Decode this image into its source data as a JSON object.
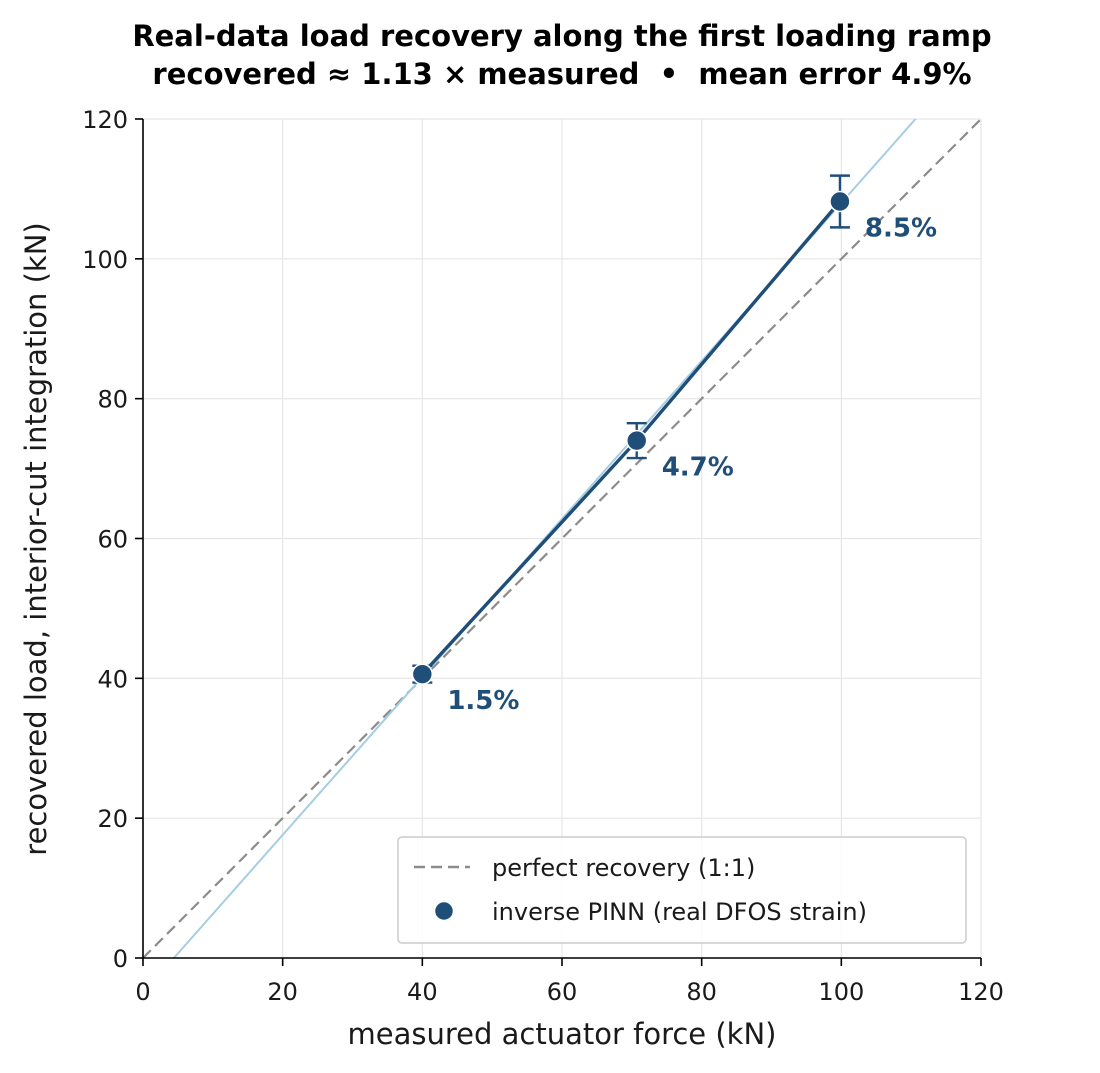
{
  "chart_data": {
    "type": "scatter",
    "title": "Real-data load recovery along the first loading ramp",
    "subtitle": "recovered ≈ 1.13 × measured  •  mean error 4.9%",
    "xlabel": "measured actuator force (kN)",
    "ylabel": "recovered load, interior-cut integration (kN)",
    "xlim": [
      0,
      120
    ],
    "ylim": [
      0,
      120
    ],
    "xticks": [
      "0",
      "20",
      "40",
      "60",
      "80",
      "100",
      "120"
    ],
    "yticks": [
      "0",
      "20",
      "40",
      "60",
      "80",
      "100",
      "120"
    ],
    "grid": true,
    "legend_position": "lower-right",
    "series": [
      {
        "name": "perfect recovery (1:1)",
        "kind": "reference-line",
        "x": [
          0,
          120
        ],
        "y": [
          0,
          120
        ],
        "color": "#8c8c8c"
      },
      {
        "name": "inverse PINN (real DFOS strain)",
        "kind": "points",
        "x": [
          40,
          70.7,
          99.8
        ],
        "y": [
          40.6,
          74,
          108.2
        ],
        "err": [
          1.2,
          2.5,
          3.7
        ],
        "labels": [
          "1.5%",
          "4.7%",
          "8.5%"
        ],
        "color": "#1f4e79"
      }
    ],
    "fit": {
      "slope": 1.13,
      "intercept": -5.0,
      "color": "#a6cde2"
    }
  }
}
